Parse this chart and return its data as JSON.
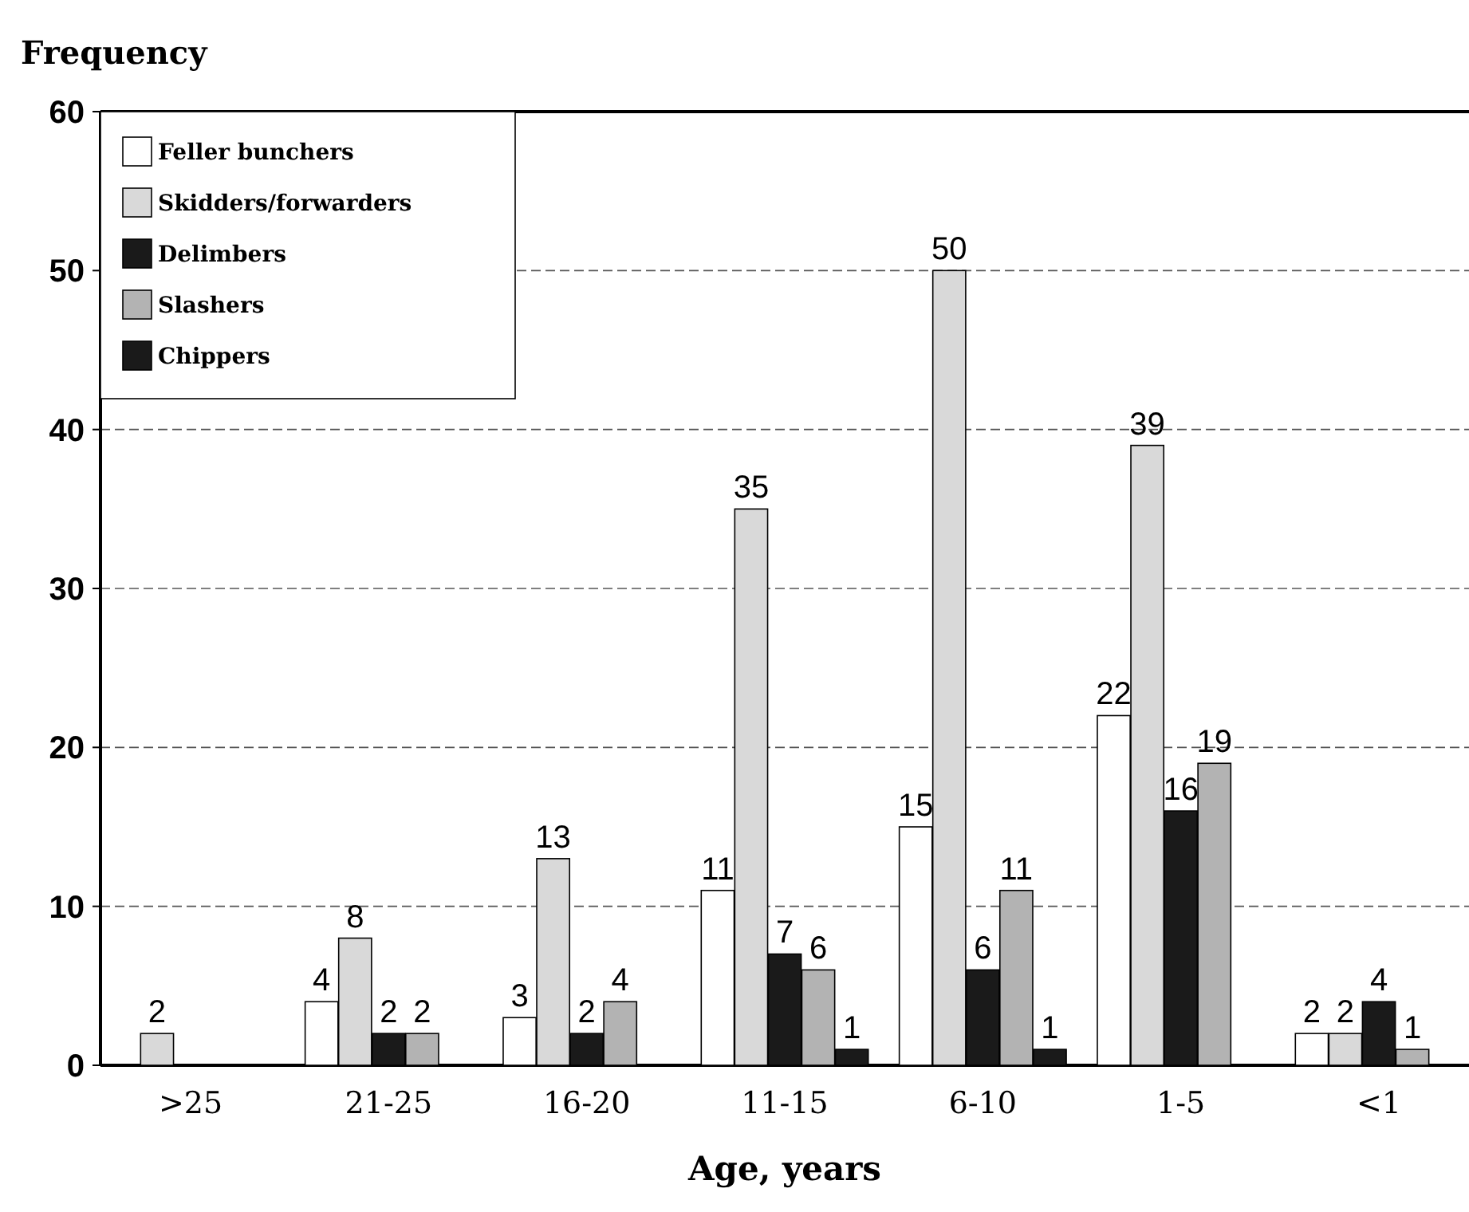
{
  "chart_data": {
    "type": "bar",
    "ylabel": "Frequency",
    "xlabel": "Age, years",
    "categories": [
      ">25",
      "21-25",
      "16-20",
      "11-15",
      "6-10",
      "1-5",
      "<1"
    ],
    "series": [
      {
        "name": "Feller bunchers",
        "color": "#ffffff",
        "values": [
          0,
          4,
          3,
          11,
          15,
          22,
          2
        ],
        "value_labels": [
          null,
          "4",
          "3",
          "11",
          "15",
          "22",
          "2"
        ]
      },
      {
        "name": "Skidders/forwarders",
        "color": "#d9d9d9",
        "values": [
          2,
          8,
          13,
          35,
          50,
          39,
          2
        ],
        "value_labels": [
          "2",
          "8",
          "13",
          "35",
          "50",
          "39",
          "2"
        ]
      },
      {
        "name": "Delimbers",
        "color": "#1a1a1a",
        "values": [
          0,
          2,
          2,
          7,
          6,
          16,
          4
        ],
        "value_labels": [
          null,
          "2",
          "2",
          "7",
          "6",
          "16",
          "4"
        ]
      },
      {
        "name": "Slashers",
        "color": "#b3b3b3",
        "values": [
          0,
          2,
          4,
          6,
          11,
          19,
          1
        ],
        "value_labels": [
          null,
          "2",
          "4",
          "6",
          "11",
          "19",
          "1"
        ]
      },
      {
        "name": "Chippers",
        "color": "#1a1a1a",
        "values": [
          0,
          0,
          0,
          1,
          1,
          0,
          0
        ],
        "value_labels": [
          null,
          null,
          null,
          "1",
          "1",
          null,
          null
        ]
      }
    ],
    "ylim": [
      0,
      60
    ],
    "yticks": [
      0,
      10,
      20,
      30,
      40,
      50,
      60
    ],
    "grid": "y",
    "legend": "top left"
  }
}
